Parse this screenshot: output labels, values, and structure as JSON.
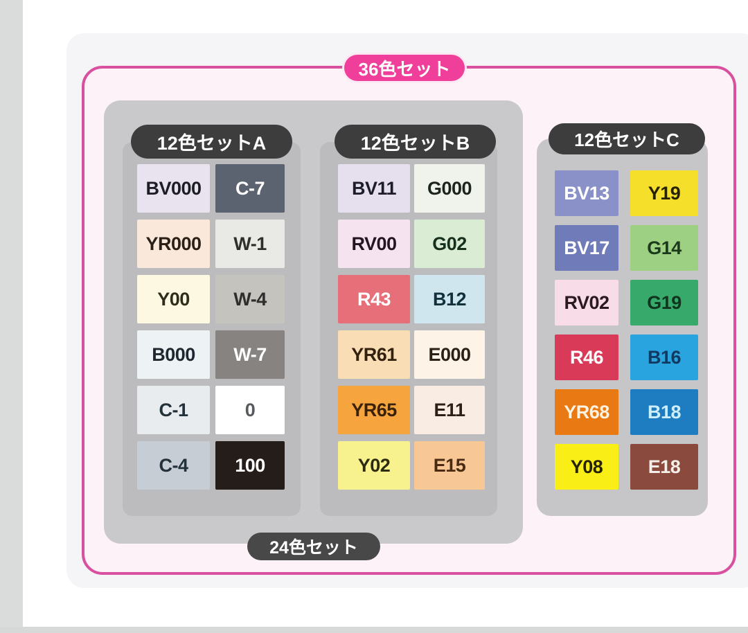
{
  "page": {
    "title_36": "36色セット",
    "title_24": "24色セット",
    "accent_pink": "#ef3f9b",
    "border_pink": "#d8509f",
    "pill_dark": "#3d3d3d"
  },
  "sets": [
    {
      "id": "a",
      "label": "12色セットA",
      "swatches": [
        {
          "code": "BV000",
          "bg": "#e9e3ef",
          "fg": "#1c1c24"
        },
        {
          "code": "C-7",
          "bg": "#5b6370",
          "fg": "#ffffff"
        },
        {
          "code": "YR000",
          "bg": "#fae9da",
          "fg": "#2a2018"
        },
        {
          "code": "W-1",
          "bg": "#e9e9e5",
          "fg": "#2e2e2c"
        },
        {
          "code": "Y00",
          "bg": "#fdf8e1",
          "fg": "#2e2c1a"
        },
        {
          "code": "W-4",
          "bg": "#c4c3be",
          "fg": "#2e2e2c"
        },
        {
          "code": "B000",
          "bg": "#edf2f5",
          "fg": "#1e2830"
        },
        {
          "code": "W-7",
          "bg": "#868380",
          "fg": "#ffffff"
        },
        {
          "code": "C-1",
          "bg": "#e9ecee",
          "fg": "#22303a"
        },
        {
          "code": "0",
          "bg": "#ffffff",
          "fg": "#565a5e"
        },
        {
          "code": "C-4",
          "bg": "#c6cdd4",
          "fg": "#22303a"
        },
        {
          "code": "100",
          "bg": "#251d1a",
          "fg": "#ffffff"
        }
      ]
    },
    {
      "id": "b",
      "label": "12色セットB",
      "swatches": [
        {
          "code": "BV11",
          "bg": "#e6e0ee",
          "fg": "#1c1c2a"
        },
        {
          "code": "G000",
          "bg": "#eff3ec",
          "fg": "#1c241c"
        },
        {
          "code": "RV00",
          "bg": "#f5e4f0",
          "fg": "#241424"
        },
        {
          "code": "G02",
          "bg": "#daecd4",
          "fg": "#16301e"
        },
        {
          "code": "R43",
          "bg": "#e66f79",
          "fg": "#ffffff"
        },
        {
          "code": "B12",
          "bg": "#d0e6ee",
          "fg": "#122f3c"
        },
        {
          "code": "YR61",
          "bg": "#f8ddb5",
          "fg": "#33200e"
        },
        {
          "code": "E000",
          "bg": "#fdf4e7",
          "fg": "#2a2018"
        },
        {
          "code": "YR65",
          "bg": "#f5a43e",
          "fg": "#3a2208"
        },
        {
          "code": "E11",
          "bg": "#f9ece2",
          "fg": "#2a2018"
        },
        {
          "code": "Y02",
          "bg": "#f7f18e",
          "fg": "#2c2a10"
        },
        {
          "code": "E15",
          "bg": "#f7c896",
          "fg": "#4a2a12"
        }
      ]
    },
    {
      "id": "c",
      "label": "12色セットC",
      "swatches": [
        {
          "code": "BV13",
          "bg": "#8a90c8",
          "fg": "#ffffff"
        },
        {
          "code": "Y19",
          "bg": "#f5df2b",
          "fg": "#262200"
        },
        {
          "code": "BV17",
          "bg": "#707cba",
          "fg": "#ffffff"
        },
        {
          "code": "G14",
          "bg": "#9ed083",
          "fg": "#1b3a1b"
        },
        {
          "code": "RV02",
          "bg": "#f8dce7",
          "fg": "#2a1a20"
        },
        {
          "code": "G19",
          "bg": "#37a96b",
          "fg": "#10351f"
        },
        {
          "code": "R46",
          "bg": "#d93a57",
          "fg": "#ffffff"
        },
        {
          "code": "B16",
          "bg": "#2aa4de",
          "fg": "#113a63"
        },
        {
          "code": "YR68",
          "bg": "#e87913",
          "fg": "#fdf2df"
        },
        {
          "code": "B18",
          "bg": "#1d7dc0",
          "fg": "#cdeefb"
        },
        {
          "code": "Y08",
          "bg": "#f9ee16",
          "fg": "#262200"
        },
        {
          "code": "E18",
          "bg": "#8b4a3e",
          "fg": "#f5efe9"
        }
      ]
    }
  ]
}
